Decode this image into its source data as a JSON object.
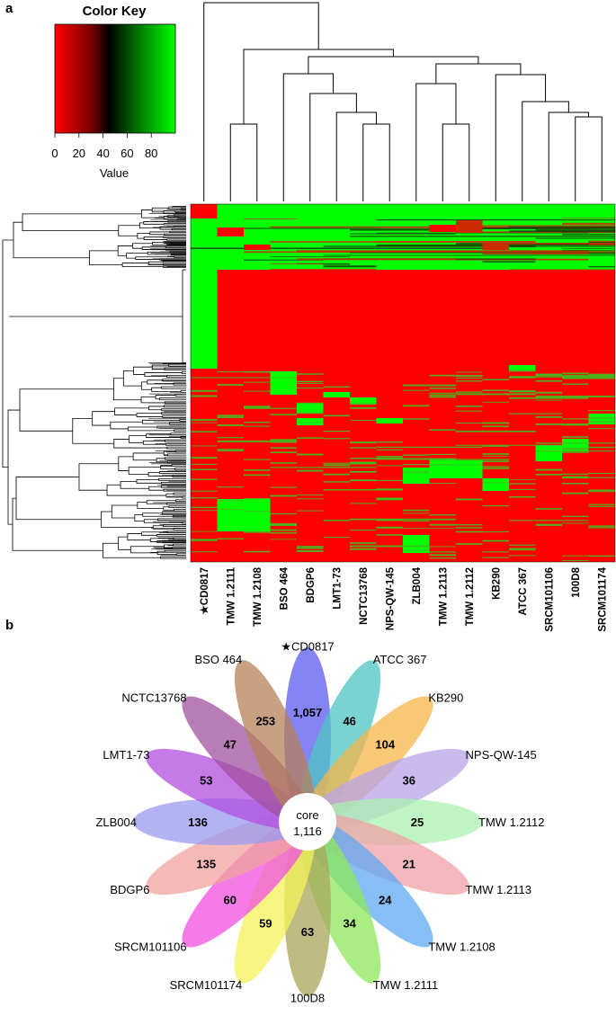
{
  "panels": {
    "a": "a",
    "b": "b"
  },
  "colors": {
    "low": "#ff0000",
    "mid": "#000000",
    "high": "#00ff00"
  },
  "chart_data": [
    {
      "type": "heatmap",
      "title": "",
      "color_key": {
        "title": "Color Key",
        "xlabel": "Value",
        "ticks": [
          "0",
          "20",
          "40",
          "60",
          "80"
        ],
        "range": [
          0,
          100
        ]
      },
      "columns": [
        "★CD0817",
        "TMW 1.2111",
        "TMW 1.2108",
        "BSO 464",
        "BDGP6",
        "LMT1-73",
        "NCTC13768",
        "NPS-QW-145",
        "ZLB004",
        "TMW 1.2113",
        "TMW 1.2112",
        "KB290",
        "ATCC 367",
        "SRCM101106",
        "100D8",
        "SRCM101174"
      ],
      "row_dendrogram": true,
      "column_dendrogram": true
    },
    {
      "type": "flower",
      "title": "",
      "core": {
        "label": "core",
        "value": "1,116"
      },
      "petals": [
        {
          "name": "★CD0817",
          "value": "1,057",
          "color": "#5b5bf0"
        },
        {
          "name": "ATCC 367",
          "value": "46",
          "color": "#4dc4c4"
        },
        {
          "name": "KB290",
          "value": "104",
          "color": "#f5b64a"
        },
        {
          "name": "NPS-QW-145",
          "value": "36",
          "color": "#b8a3e8"
        },
        {
          "name": "TMW 1.2112",
          "value": "25",
          "color": "#a9f2b0"
        },
        {
          "name": "TMW 1.2113",
          "value": "21",
          "color": "#f2a0a6"
        },
        {
          "name": "TMW 1.2108",
          "value": "24",
          "color": "#5ea8f2"
        },
        {
          "name": "TMW 1.2111",
          "value": "34",
          "color": "#8ee85a"
        },
        {
          "name": "100D8",
          "value": "63",
          "color": "#a8a55a"
        },
        {
          "name": "SRCM101174",
          "value": "59",
          "color": "#f5f25a"
        },
        {
          "name": "SRCM101106",
          "value": "60",
          "color": "#f04fe0"
        },
        {
          "name": "BDGP6",
          "value": "135",
          "color": "#f2a3a0"
        },
        {
          "name": "ZLB004",
          "value": "136",
          "color": "#9a9af0"
        },
        {
          "name": "LMT1-73",
          "value": "53",
          "color": "#b24de0"
        },
        {
          "name": "NCTC13768",
          "value": "47",
          "color": "#a0509e"
        },
        {
          "name": "BSO 464",
          "value": "253",
          "color": "#b5825a"
        }
      ]
    }
  ]
}
